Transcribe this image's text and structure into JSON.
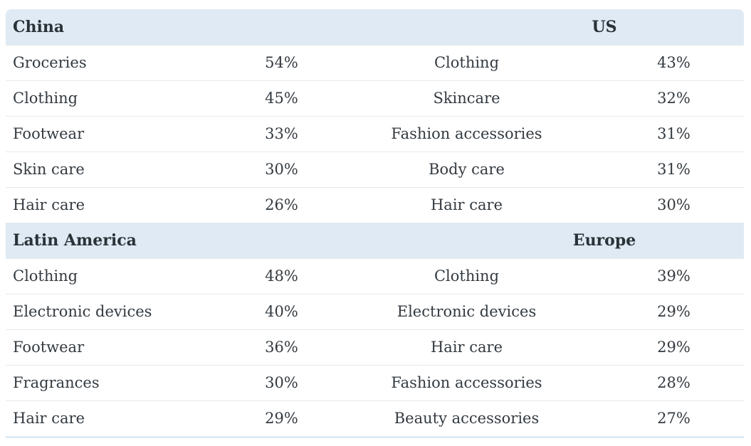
{
  "sections": [
    {
      "left_title": "China",
      "right_title": "US",
      "rows": [
        {
          "left_item": "Groceries",
          "left_pct": "54%",
          "right_item": "Clothing",
          "right_pct": "43%"
        },
        {
          "left_item": "Clothing",
          "left_pct": "45%",
          "right_item": "Skincare",
          "right_pct": "32%"
        },
        {
          "left_item": "Footwear",
          "left_pct": "33%",
          "right_item": "Fashion accessories",
          "right_pct": "31%"
        },
        {
          "left_item": "Skin care",
          "left_pct": "30%",
          "right_item": "Body care",
          "right_pct": "31%"
        },
        {
          "left_item": "Hair care",
          "left_pct": "26%",
          "right_item": "Hair care",
          "right_pct": "30%"
        }
      ]
    },
    {
      "left_title": "Latin America",
      "right_title": "Europe",
      "rows": [
        {
          "left_item": "Clothing",
          "left_pct": "48%",
          "right_item": "Clothing",
          "right_pct": "39%"
        },
        {
          "left_item": "Electronic devices",
          "left_pct": "40%",
          "right_item": "Electronic devices",
          "right_pct": "29%"
        },
        {
          "left_item": "Footwear",
          "left_pct": "36%",
          "right_item": "Hair care",
          "right_pct": "29%"
        },
        {
          "left_item": "Fragrances",
          "left_pct": "30%",
          "right_item": "Fashion accessories",
          "right_pct": "28%"
        },
        {
          "left_item": "Hair care",
          "left_pct": "29%",
          "right_item": "Beauty accessories",
          "right_pct": "27%"
        }
      ]
    }
  ],
  "colors": {
    "header_bg": "#dfeaf4",
    "text": "#333a40",
    "alt_row": "#f8f8f8"
  }
}
